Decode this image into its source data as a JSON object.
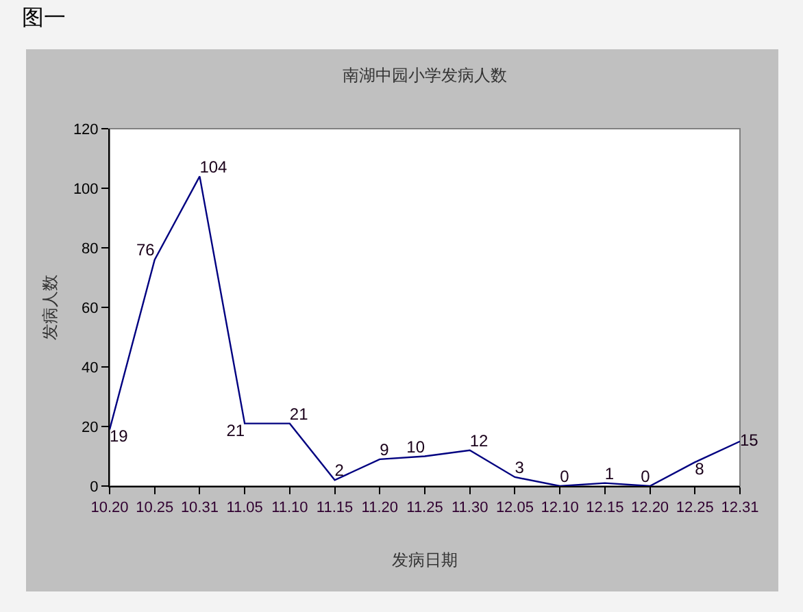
{
  "chart_data": {
    "type": "line",
    "title": "南湖中园小学发病人数",
    "xlabel": "发病日期",
    "ylabel": "发病人数",
    "annotations": [
      "图一"
    ],
    "categories": [
      "10.20",
      "10.25",
      "10.31",
      "11.05",
      "11.10",
      "11.15",
      "11.20",
      "11.25",
      "11.30",
      "12.05",
      "12.10",
      "12.15",
      "12.20",
      "12.25",
      "12.31"
    ],
    "series": [
      {
        "color": "#000080",
        "values": [
          19,
          76,
          104,
          21,
          21,
          2,
          9,
          10,
          12,
          3,
          0,
          1,
          0,
          8,
          15
        ]
      }
    ],
    "ylim": [
      0,
      120
    ],
    "yticks": [
      0,
      20,
      40,
      60,
      80,
      100,
      120
    ],
    "data_labels": true,
    "grid": false,
    "marker": "none",
    "line_style": "solid"
  }
}
